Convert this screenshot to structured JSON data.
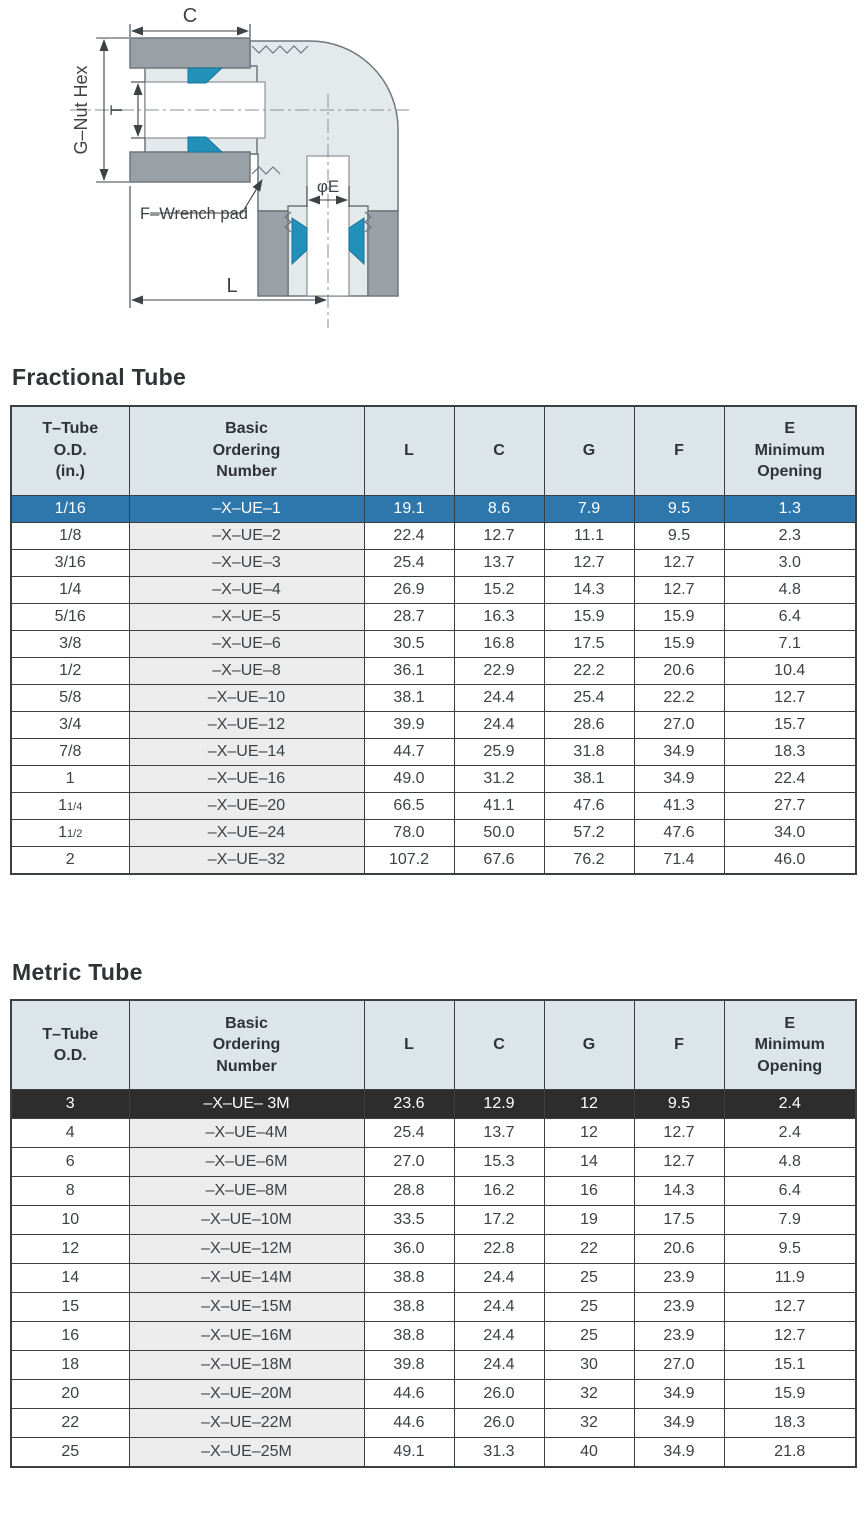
{
  "diagram": {
    "labels": {
      "c": "C",
      "g_nut_hex": "G–Nut Hex",
      "t": "T",
      "f_wrench_pad": "F–Wrench pad",
      "e": "φE",
      "l": "L"
    },
    "colors": {
      "body": "#e4e9eb",
      "nut": "#9aa1a6",
      "ferrule": "#2191ba",
      "dimension": "#3c4246"
    }
  },
  "fractional": {
    "title": "Fractional Tube",
    "columns": [
      "T–Tube\nO.D.\n(in.)",
      "Basic\nOrdering\nNumber",
      "L",
      "C",
      "G",
      "F",
      "E\nMinimum\nOpening"
    ],
    "rows": [
      {
        "od": "1/16",
        "num": "–X–UE–1",
        "l": "19.1",
        "c": "8.6",
        "g": "7.9",
        "f": "9.5",
        "e": "1.3",
        "highlight": "blue"
      },
      {
        "od": "1/8",
        "num": "–X–UE–2",
        "l": "22.4",
        "c": "12.7",
        "g": "11.1",
        "f": "9.5",
        "e": "2.3"
      },
      {
        "od": "3/16",
        "num": "–X–UE–3",
        "l": "25.4",
        "c": "13.7",
        "g": "12.7",
        "f": "12.7",
        "e": "3.0"
      },
      {
        "od": "1/4",
        "num": "–X–UE–4",
        "l": "26.9",
        "c": "15.2",
        "g": "14.3",
        "f": "12.7",
        "e": "4.8"
      },
      {
        "od": "5/16",
        "num": "–X–UE–5",
        "l": "28.7",
        "c": "16.3",
        "g": "15.9",
        "f": "15.9",
        "e": "6.4"
      },
      {
        "od": "3/8",
        "num": "–X–UE–6",
        "l": "30.5",
        "c": "16.8",
        "g": "17.5",
        "f": "15.9",
        "e": "7.1"
      },
      {
        "od": "1/2",
        "num": "–X–UE–8",
        "l": "36.1",
        "c": "22.9",
        "g": "22.2",
        "f": "20.6",
        "e": "10.4"
      },
      {
        "od": "5/8",
        "num": "–X–UE–10",
        "l": "38.1",
        "c": "24.4",
        "g": "25.4",
        "f": "22.2",
        "e": "12.7"
      },
      {
        "od": "3/4",
        "num": "–X–UE–12",
        "l": "39.9",
        "c": "24.4",
        "g": "28.6",
        "f": "27.0",
        "e": "15.7"
      },
      {
        "od": "7/8",
        "num": "–X–UE–14",
        "l": "44.7",
        "c": "25.9",
        "g": "31.8",
        "f": "34.9",
        "e": "18.3"
      },
      {
        "od": "1",
        "num": "–X–UE–16",
        "l": "49.0",
        "c": "31.2",
        "g": "38.1",
        "f": "34.9",
        "e": "22.4"
      },
      {
        "od": "1",
        "od_frac": "1/4",
        "num": "–X–UE–20",
        "l": "66.5",
        "c": "41.1",
        "g": "47.6",
        "f": "41.3",
        "e": "27.7"
      },
      {
        "od": "1",
        "od_frac": "1/2",
        "num": "–X–UE–24",
        "l": "78.0",
        "c": "50.0",
        "g": "57.2",
        "f": "47.6",
        "e": "34.0"
      },
      {
        "od": "2",
        "num": "–X–UE–32",
        "l": "107.2",
        "c": "67.6",
        "g": "76.2",
        "f": "71.4",
        "e": "46.0"
      }
    ]
  },
  "metric": {
    "title": "Metric Tube",
    "columns": [
      "T–Tube\nO.D.",
      "Basic\nOrdering\nNumber",
      "L",
      "C",
      "G",
      "F",
      "E\nMinimum\nOpening"
    ],
    "rows": [
      {
        "od": "3",
        "num": "–X–UE– 3M",
        "l": "23.6",
        "c": "12.9",
        "g": "12",
        "f": "9.5",
        "e": "2.4",
        "highlight": "dark"
      },
      {
        "od": "4",
        "num": "–X–UE–4M",
        "l": "25.4",
        "c": "13.7",
        "g": "12",
        "f": "12.7",
        "e": "2.4"
      },
      {
        "od": "6",
        "num": "–X–UE–6M",
        "l": "27.0",
        "c": "15.3",
        "g": "14",
        "f": "12.7",
        "e": "4.8"
      },
      {
        "od": "8",
        "num": "–X–UE–8M",
        "l": "28.8",
        "c": "16.2",
        "g": "16",
        "f": "14.3",
        "e": "6.4"
      },
      {
        "od": "10",
        "num": "–X–UE–10M",
        "l": "33.5",
        "c": "17.2",
        "g": "19",
        "f": "17.5",
        "e": "7.9"
      },
      {
        "od": "12",
        "num": "–X–UE–12M",
        "l": "36.0",
        "c": "22.8",
        "g": "22",
        "f": "20.6",
        "e": "9.5"
      },
      {
        "od": "14",
        "num": "–X–UE–14M",
        "l": "38.8",
        "c": "24.4",
        "g": "25",
        "f": "23.9",
        "e": "11.9"
      },
      {
        "od": "15",
        "num": "–X–UE–15M",
        "l": "38.8",
        "c": "24.4",
        "g": "25",
        "f": "23.9",
        "e": "12.7"
      },
      {
        "od": "16",
        "num": "–X–UE–16M",
        "l": "38.8",
        "c": "24.4",
        "g": "25",
        "f": "23.9",
        "e": "12.7"
      },
      {
        "od": "18",
        "num": "–X–UE–18M",
        "l": "39.8",
        "c": "24.4",
        "g": "30",
        "f": "27.0",
        "e": "15.1"
      },
      {
        "od": "20",
        "num": "–X–UE–20M",
        "l": "44.6",
        "c": "26.0",
        "g": "32",
        "f": "34.9",
        "e": "15.9"
      },
      {
        "od": "22",
        "num": "–X–UE–22M",
        "l": "44.6",
        "c": "26.0",
        "g": "32",
        "f": "34.9",
        "e": "18.3"
      },
      {
        "od": "25",
        "num": "–X–UE–25M",
        "l": "49.1",
        "c": "31.3",
        "g": "40",
        "f": "34.9",
        "e": "21.8"
      }
    ]
  },
  "highlight_colors": {
    "blue": "#2d77ad",
    "dark": "#2d2d2d",
    "header_bg": "#dce5ea",
    "ordering_bg": "#ececec"
  }
}
